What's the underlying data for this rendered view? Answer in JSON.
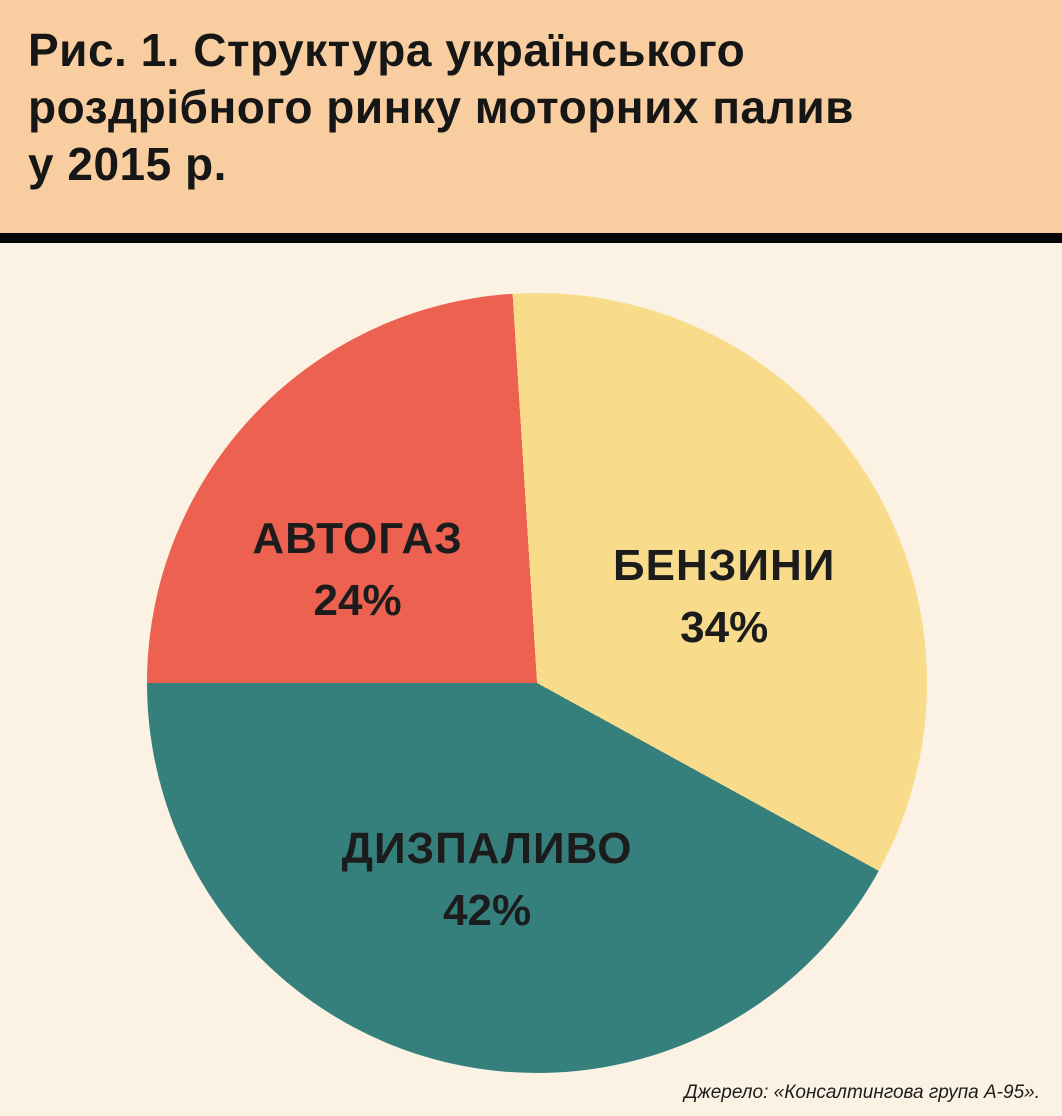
{
  "header": {
    "title": "Рис. 1. Структура українського роздрібного ринку моторних палив у 2015 р.",
    "title_lines": [
      "Рис. 1. Структура українського",
      "роздрібного ринку моторних палив",
      "у 2015 р."
    ]
  },
  "chart_data": {
    "type": "pie",
    "title": "Структура українського роздрібного ринку моторних палив у 2015 р.",
    "start_angle_deg": -3.6,
    "legend_position": "inside",
    "slices": [
      {
        "label": "БЕНЗИНИ",
        "value": 34,
        "value_label": "34%",
        "color": "#F8DC8C"
      },
      {
        "label": "ДИЗПАЛИВО",
        "value": 42,
        "value_label": "42%",
        "color": "#35807D"
      },
      {
        "label": "АВТОГАЗ",
        "value": 24,
        "value_label": "24%",
        "color": "#EC614F"
      }
    ],
    "colors": {
      "header_background": "#F8CD9F",
      "body_background": "#FBF2E3",
      "divider": "#060606",
      "text": "#1c1c1c"
    }
  },
  "source_note": "Джерело: «Консалтингова група А-95»."
}
